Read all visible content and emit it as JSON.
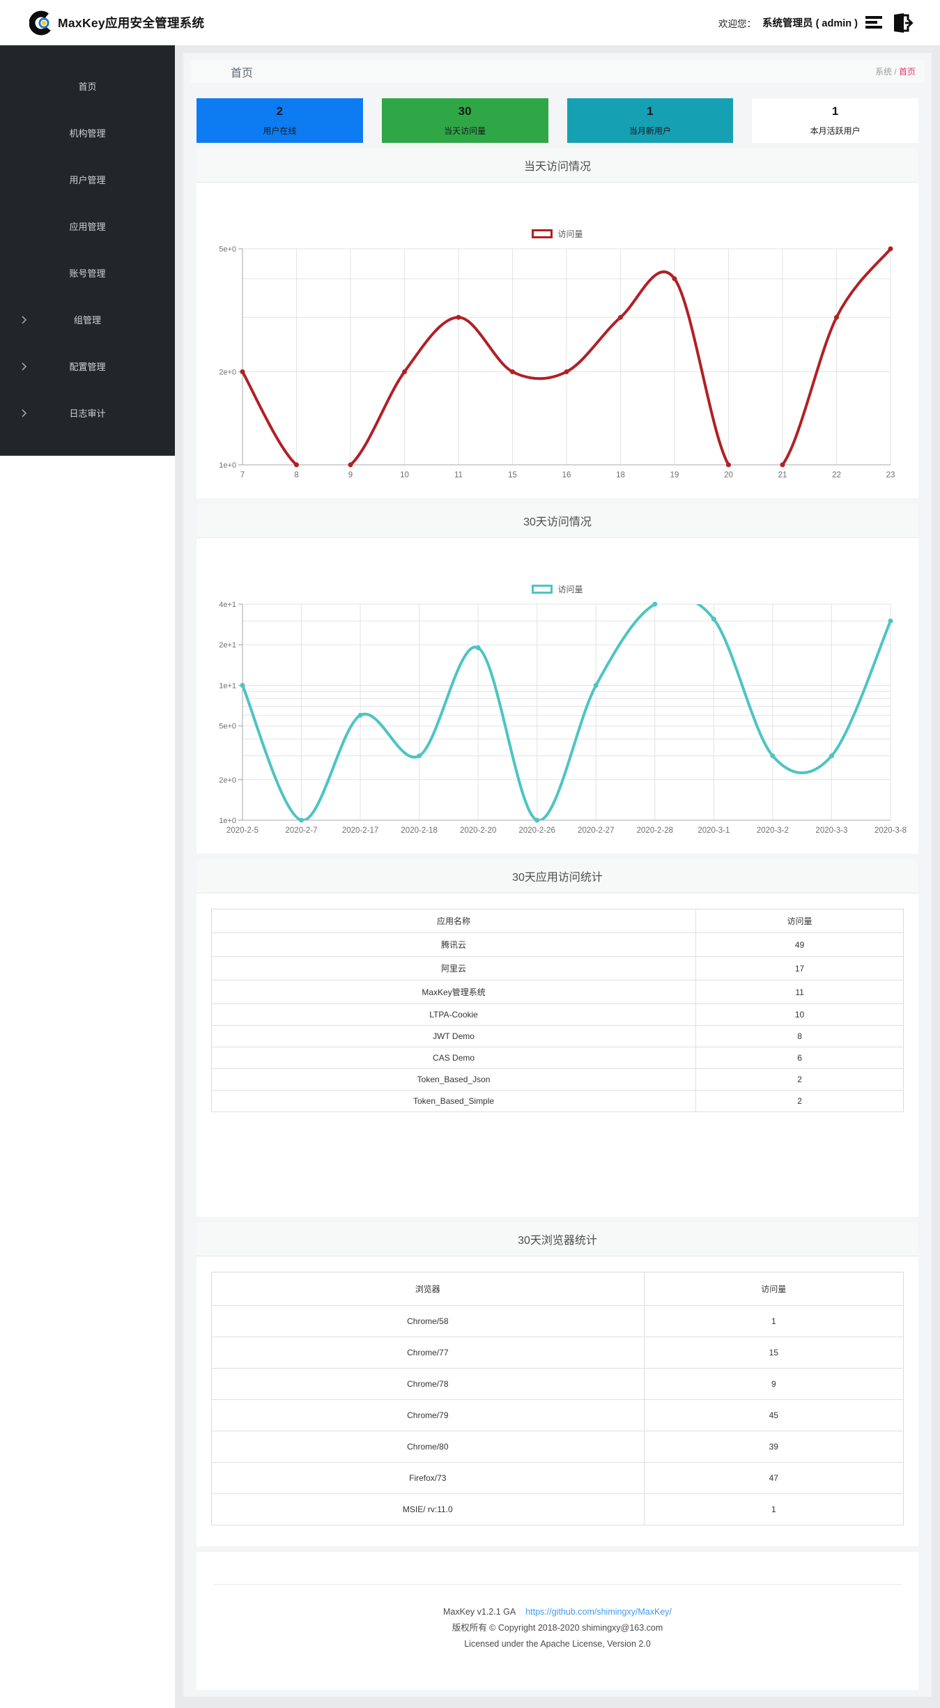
{
  "navbar": {
    "title": "MaxKey应用安全管理系统",
    "welcome_label": "欢迎您：",
    "user": "系统管理员 ( admin )"
  },
  "sidebar": {
    "items": [
      {
        "label": "首页"
      },
      {
        "label": "机构管理"
      },
      {
        "label": "用户管理"
      },
      {
        "label": "应用管理"
      },
      {
        "label": "账号管理"
      },
      {
        "label": "组管理"
      },
      {
        "label": "配置管理"
      },
      {
        "label": "日志审计"
      }
    ]
  },
  "breadcrumb": {
    "page_title": "首页",
    "root": "系统",
    "separator": " / ",
    "current": "首页",
    "accent_color": "#ee2f6c"
  },
  "cards": [
    {
      "value": "2",
      "label": "用户在线",
      "color": "#0d7cf2"
    },
    {
      "value": "30",
      "label": "当天访问量",
      "color": "#2fa747"
    },
    {
      "value": "1",
      "label": "当月新用户",
      "color": "#16a0b3"
    },
    {
      "value": "1",
      "label": "本月活跃用户",
      "color": "#ffffff"
    }
  ],
  "chart_data": [
    {
      "type": "line",
      "title": "当天访问情况",
      "legend": "访问量",
      "color": "#b12025",
      "x_type": "category",
      "categories": [
        "7",
        "8",
        "9",
        "10",
        "11",
        "15",
        "16",
        "18",
        "19",
        "20",
        "21",
        "22",
        "23"
      ],
      "values": [
        2,
        1,
        1,
        2,
        3,
        2,
        2,
        3,
        4,
        1,
        1,
        3,
        5
      ],
      "y_scale": "log",
      "ylim": [
        1,
        5
      ],
      "grid": true,
      "legend_position": "top-center",
      "grid_values": [
        1,
        2,
        3,
        4,
        5
      ],
      "tick_labels": {
        "1": "1e+0",
        "2": "2e+0",
        "5": "5e+0"
      }
    },
    {
      "type": "line",
      "title": "30天访问情况",
      "legend": "访问量",
      "color": "#4cc5c2",
      "x_type": "category",
      "categories": [
        "2020-2-5",
        "2020-2-7",
        "2020-2-17",
        "2020-2-18",
        "2020-2-20",
        "2020-2-26",
        "2020-2-27",
        "2020-2-28",
        "2020-3-1",
        "2020-3-2",
        "2020-3-3",
        "2020-3-8"
      ],
      "values": [
        10,
        1,
        6,
        3,
        19,
        1,
        10,
        40,
        31,
        3,
        3,
        30
      ],
      "y_scale": "log",
      "ylim": [
        1,
        40
      ],
      "grid": true,
      "legend_position": "top-center",
      "grid_values": [
        1,
        2,
        3,
        4,
        5,
        6,
        7,
        8,
        9,
        10,
        20,
        30,
        40
      ],
      "tick_labels": {
        "1": "1e+0",
        "2": "2e+0",
        "5": "5e+0",
        "10": "1e+1",
        "20": "2e+1",
        "40": "4e+1"
      }
    }
  ],
  "tables": [
    {
      "title": "30天应用访问统计",
      "headers": [
        "应用名称",
        "访问量"
      ],
      "rows": [
        [
          "腾讯云",
          "49"
        ],
        [
          "阿里云",
          "17"
        ],
        [
          "MaxKey管理系统",
          "11"
        ],
        [
          "LTPA-Cookie",
          "10"
        ],
        [
          "JWT Demo",
          "8"
        ],
        [
          "CAS Demo",
          "6"
        ],
        [
          "Token_Based_Json",
          "2"
        ],
        [
          "Token_Based_Simple",
          "2"
        ]
      ]
    },
    {
      "title": "30天浏览器统计",
      "headers": [
        "浏览器",
        "访问量"
      ],
      "rows": [
        [
          "Chrome/58",
          "1"
        ],
        [
          "Chrome/77",
          "15"
        ],
        [
          "Chrome/78",
          "9"
        ],
        [
          "Chrome/79",
          "45"
        ],
        [
          "Chrome/80",
          "39"
        ],
        [
          "Firefox/73",
          "47"
        ],
        [
          "MSIE/ rv:11.0",
          "1"
        ]
      ]
    }
  ],
  "footer": {
    "line1_left": "MaxKey  v1.2.1 GA",
    "link": "https://github.com/shimingxy/MaxKey/",
    "link_color": "#3f9bf4",
    "line2": "版权所有 © Copyright 2018-2020 shimingxy@163.com",
    "line3": "Licensed under the Apache License, Version 2.0"
  }
}
